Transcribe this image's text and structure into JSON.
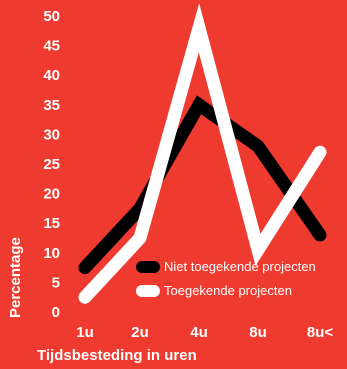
{
  "chart_data": {
    "type": "line",
    "categories": [
      "1u",
      "2u",
      "4u",
      "8u",
      "8u<"
    ],
    "series": [
      {
        "name": "Niet toegekende projecten",
        "values": [
          7.5,
          17.5,
          35,
          28,
          13
        ],
        "color": "#000000"
      },
      {
        "name": "Toegekende projecten",
        "values": [
          2.5,
          12.5,
          48,
          10.5,
          27
        ],
        "color": "#ffffff"
      }
    ],
    "xlabel": "Tijdsbesteding in uren",
    "ylabel": "Percentage",
    "ylim": [
      0,
      50
    ],
    "yticks": [
      0,
      5,
      10,
      15,
      20,
      25,
      30,
      35,
      40,
      45,
      50
    ],
    "grid": false,
    "legend_position": "bottom-right",
    "background_color": "#ee3a2f",
    "text_color": "#ffffff"
  }
}
